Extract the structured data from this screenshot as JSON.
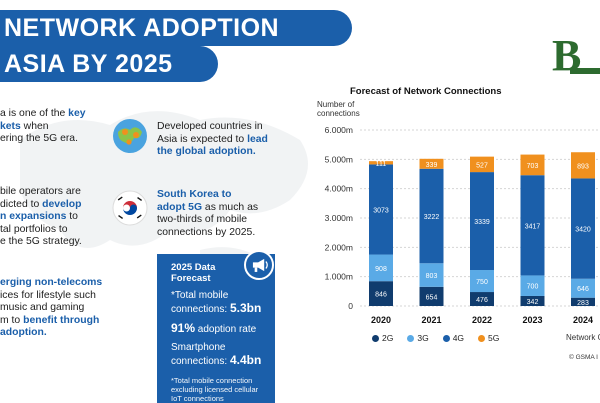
{
  "title": {
    "line1": "NETWORK ADOPTION",
    "line2": "ASIA BY 2025"
  },
  "left_panel": {
    "block1": {
      "line1_pre": "a is one of the ",
      "line1_hl": "key",
      "line2_hl": "kets",
      "line2_post": " when",
      "line3": "ering the 5G era."
    },
    "block2": {
      "line1": "bile operators are",
      "line2_pre": "dicted to ",
      "line2_hl": "develop",
      "line3_hl": "n expansions",
      "line3_post": " to",
      "line4": "tal portfolios to",
      "line5": "e the 5G strategy."
    },
    "block3": {
      "line1_hl": "erging non-telecoms",
      "line2": "ices for lifestyle such",
      "line3": "music and gaming",
      "line4_pre": "m to ",
      "line4_hl": "benefit through",
      "line5_hl": "adoption."
    }
  },
  "middle_panel": {
    "item1": {
      "line1": "Developed countries in",
      "line2_pre": "Asia is expected to ",
      "line2_hl": "lead",
      "line3_hl": "the global adoption."
    },
    "item2": {
      "line1_hl": "South Korea to",
      "line2_hl": "adopt 5G",
      "line2_post": " as much as",
      "line3": "two-thirds of mobile",
      "line4": "connections by 2025."
    }
  },
  "forecast_box": {
    "title_line1": "2025 Data",
    "title_line2": "Forecast",
    "row1_label": "*Total mobile",
    "row1_label2": "connections: ",
    "row1_value": "5.3bn",
    "row2_value": "91%",
    "row2_label": " adoption rate",
    "row3_label": "Smartphone",
    "row3_label2": "connections: ",
    "row3_value": "4.4bn",
    "note_line1": "*Total mobile connection",
    "note_line2": "excluding licensed cellular",
    "note_line3": "IoT connections"
  },
  "chart_data": {
    "type": "bar",
    "stacked": true,
    "title": "Forecast of Network Connections",
    "ylabel_line1": "Number of",
    "ylabel_line2": "connections",
    "xlabel": "Network C",
    "source": "© GSMA I",
    "ylim": [
      0,
      6000
    ],
    "yticks": [
      0,
      1000,
      2000,
      3000,
      4000,
      5000,
      6000
    ],
    "ytick_labels": [
      "0",
      "1.000m",
      "2.000m",
      "3.000m",
      "4.000m",
      "5.000m",
      "6.000m"
    ],
    "categories": [
      "2020",
      "2021",
      "2022",
      "2023",
      "2024"
    ],
    "series": [
      {
        "name": "2G",
        "color": "#103c6e",
        "values": [
          846,
          654,
          476,
          342,
          283
        ]
      },
      {
        "name": "3G",
        "color": "#5aaae6",
        "values": [
          908,
          803,
          750,
          700,
          646
        ]
      },
      {
        "name": "4G",
        "color": "#1b5faa",
        "values": [
          3073,
          3222,
          3339,
          3417,
          3420
        ]
      },
      {
        "name": "5G",
        "color": "#f0901e",
        "values": [
          111,
          339,
          527,
          703,
          893
        ]
      }
    ]
  },
  "colors": {
    "brand_blue": "#1b5faa",
    "accent_orange": "#f0901e",
    "brand_green": "#2d6b2f"
  }
}
